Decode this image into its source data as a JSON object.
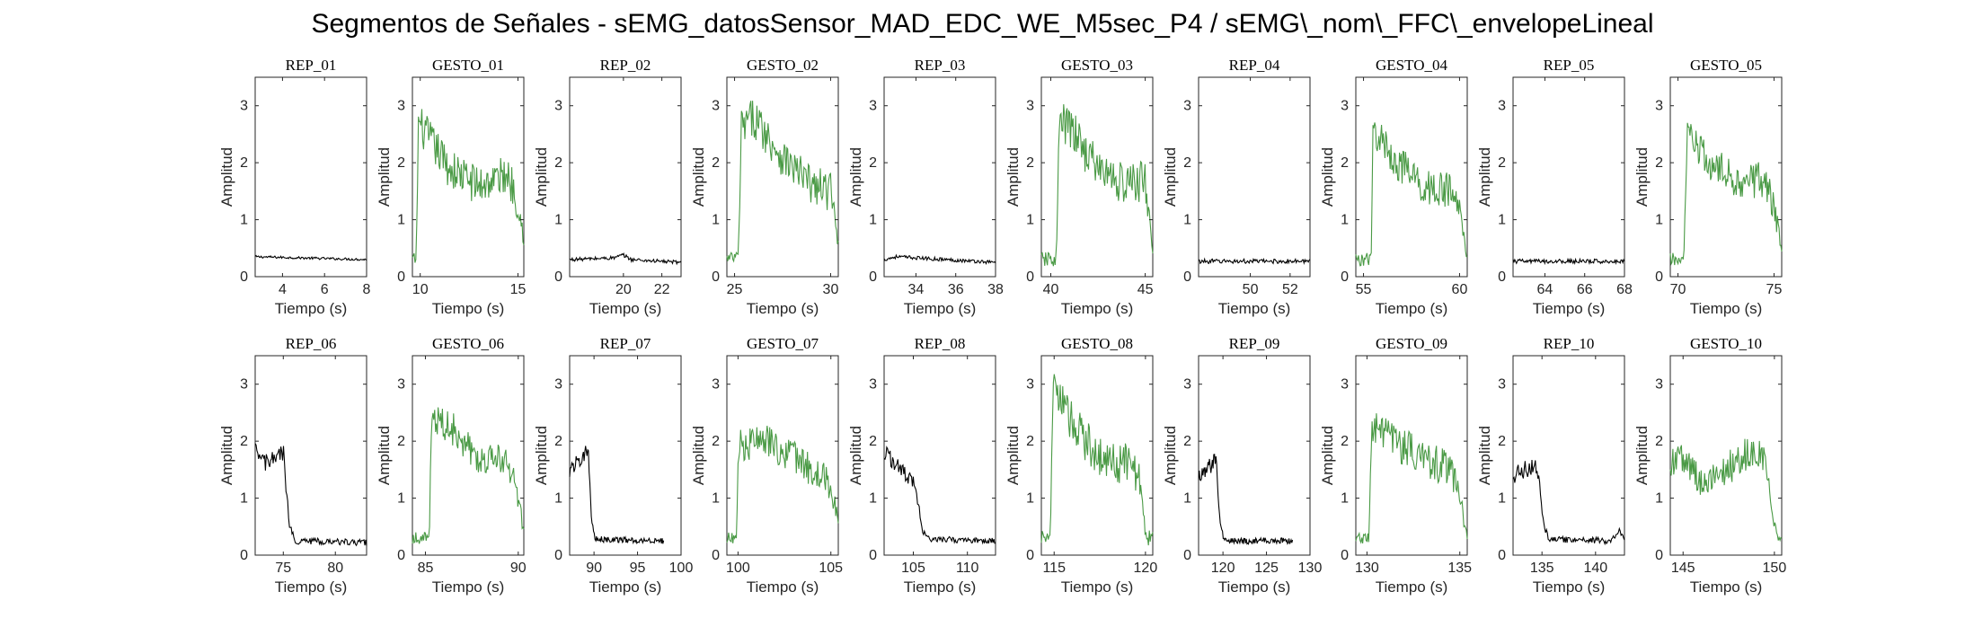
{
  "figure": {
    "title": "Segmentos de Señales - sEMG_datosSensor_MAD_EDC_WE_M5sec_P4 / sEMG\\_nom\\_FFC\\_envelopeLineal"
  },
  "chart_data": [
    {
      "type": "line",
      "title": "REP_01",
      "xlabel": "Tiempo (s)",
      "ylabel": "Amplitud",
      "xlim": [
        2.7,
        8
      ],
      "ylim": [
        0,
        3.5
      ],
      "xticks": [
        4,
        6,
        8
      ],
      "yticks": [
        0,
        1,
        2,
        3
      ],
      "color": "#000000",
      "profile": [
        [
          2.7,
          0.35
        ],
        [
          8,
          0.3
        ]
      ],
      "noise": 0.06
    },
    {
      "type": "line",
      "title": "GESTO_01",
      "xlabel": "Tiempo (s)",
      "ylabel": "Amplitud",
      "xlim": [
        9.6,
        15.3
      ],
      "ylim": [
        0,
        3.5
      ],
      "xticks": [
        10,
        15
      ],
      "yticks": [
        0,
        1,
        2,
        3
      ],
      "color": "#4a9a45",
      "profile": [
        [
          9.6,
          0.3
        ],
        [
          9.8,
          0.3
        ],
        [
          9.9,
          2.7
        ],
        [
          10.5,
          2.4
        ],
        [
          11.5,
          1.9
        ],
        [
          13,
          1.6
        ],
        [
          14.5,
          1.8
        ],
        [
          15,
          1.3
        ],
        [
          15.3,
          0.7
        ]
      ],
      "noise": 0.35
    },
    {
      "type": "line",
      "title": "REP_02",
      "xlabel": "Tiempo (s)",
      "ylabel": "Amplitud",
      "xlim": [
        17.2,
        23
      ],
      "ylim": [
        0,
        3.5
      ],
      "xticks": [
        20,
        22
      ],
      "yticks": [
        0,
        1,
        2,
        3
      ],
      "color": "#000000",
      "profile": [
        [
          17.2,
          0.3
        ],
        [
          19.5,
          0.33
        ],
        [
          20,
          0.38
        ],
        [
          20.4,
          0.3
        ],
        [
          23,
          0.25
        ]
      ],
      "noise": 0.09
    },
    {
      "type": "line",
      "title": "GESTO_02",
      "xlabel": "Tiempo (s)",
      "ylabel": "Amplitud",
      "xlim": [
        24.6,
        30.4
      ],
      "ylim": [
        0,
        3.5
      ],
      "xticks": [
        25,
        30
      ],
      "yticks": [
        0,
        1,
        2,
        3
      ],
      "color": "#4a9a45",
      "profile": [
        [
          24.6,
          0.3
        ],
        [
          25.2,
          0.35
        ],
        [
          25.35,
          2.6
        ],
        [
          26,
          2.8
        ],
        [
          27.5,
          2.1
        ],
        [
          29,
          1.6
        ],
        [
          30,
          1.5
        ],
        [
          30.4,
          0.6
        ]
      ],
      "noise": 0.35
    },
    {
      "type": "line",
      "title": "REP_03",
      "xlabel": "Tiempo (s)",
      "ylabel": "Amplitud",
      "xlim": [
        32.4,
        38
      ],
      "ylim": [
        0,
        3.5
      ],
      "xticks": [
        34,
        36,
        38
      ],
      "yticks": [
        0,
        1,
        2,
        3
      ],
      "color": "#000000",
      "profile": [
        [
          32.4,
          0.3
        ],
        [
          33,
          0.35
        ],
        [
          38,
          0.25
        ]
      ],
      "noise": 0.09
    },
    {
      "type": "line",
      "title": "GESTO_03",
      "xlabel": "Tiempo (s)",
      "ylabel": "Amplitud",
      "xlim": [
        39.5,
        45.4
      ],
      "ylim": [
        0,
        3.5
      ],
      "xticks": [
        40,
        45
      ],
      "yticks": [
        0,
        1,
        2,
        3
      ],
      "color": "#4a9a45",
      "profile": [
        [
          39.5,
          0.3
        ],
        [
          40.3,
          0.3
        ],
        [
          40.45,
          2.7
        ],
        [
          41,
          2.6
        ],
        [
          42.5,
          1.9
        ],
        [
          44,
          1.6
        ],
        [
          45,
          1.7
        ],
        [
          45.4,
          0.5
        ]
      ],
      "noise": 0.38
    },
    {
      "type": "line",
      "title": "REP_04",
      "xlabel": "Tiempo (s)",
      "ylabel": "Amplitud",
      "xlim": [
        47.4,
        53
      ],
      "ylim": [
        0,
        3.5
      ],
      "xticks": [
        50,
        52
      ],
      "yticks": [
        0,
        1,
        2,
        3
      ],
      "color": "#000000",
      "profile": [
        [
          47.4,
          0.27
        ],
        [
          53,
          0.27
        ]
      ],
      "noise": 0.11
    },
    {
      "type": "line",
      "title": "GESTO_04",
      "xlabel": "Tiempo (s)",
      "ylabel": "Amplitud",
      "xlim": [
        54.6,
        60.4
      ],
      "ylim": [
        0,
        3.5
      ],
      "xticks": [
        55,
        60
      ],
      "yticks": [
        0,
        1,
        2,
        3
      ],
      "color": "#4a9a45",
      "profile": [
        [
          54.6,
          0.3
        ],
        [
          55.4,
          0.3
        ],
        [
          55.5,
          2.6
        ],
        [
          56.5,
          2.1
        ],
        [
          58,
          1.6
        ],
        [
          59.5,
          1.5
        ],
        [
          60,
          1.2
        ],
        [
          60.4,
          0.3
        ]
      ],
      "noise": 0.33
    },
    {
      "type": "line",
      "title": "REP_05",
      "xlabel": "Tiempo (s)",
      "ylabel": "Amplitud",
      "xlim": [
        62.4,
        68
      ],
      "ylim": [
        0,
        3.5
      ],
      "xticks": [
        64,
        66,
        68
      ],
      "yticks": [
        0,
        1,
        2,
        3
      ],
      "color": "#000000",
      "profile": [
        [
          62.4,
          0.27
        ],
        [
          68,
          0.27
        ]
      ],
      "noise": 0.11
    },
    {
      "type": "line",
      "title": "GESTO_05",
      "xlabel": "Tiempo (s)",
      "ylabel": "Amplitud",
      "xlim": [
        69.6,
        75.4
      ],
      "ylim": [
        0,
        3.5
      ],
      "xticks": [
        70,
        75
      ],
      "yticks": [
        0,
        1,
        2,
        3
      ],
      "color": "#4a9a45",
      "profile": [
        [
          69.6,
          0.3
        ],
        [
          70.3,
          0.3
        ],
        [
          70.5,
          2.5
        ],
        [
          71.5,
          2.0
        ],
        [
          73,
          1.7
        ],
        [
          74.5,
          1.7
        ],
        [
          75,
          1.2
        ],
        [
          75.4,
          0.5
        ]
      ],
      "noise": 0.33
    },
    {
      "type": "line",
      "title": "REP_06",
      "xlabel": "Tiempo (s)",
      "ylabel": "Amplitud",
      "xlim": [
        72.3,
        83
      ],
      "ylim": [
        0,
        3.5
      ],
      "xticks": [
        75,
        80
      ],
      "yticks": [
        0,
        1,
        2,
        3
      ],
      "color": "#000000",
      "profile": [
        [
          72.3,
          1.8
        ],
        [
          73.5,
          1.6
        ],
        [
          75,
          1.8
        ],
        [
          75.6,
          0.5
        ],
        [
          76.2,
          0.25
        ],
        [
          83,
          0.22
        ]
      ],
      "noise": 0.16
    },
    {
      "type": "line",
      "title": "GESTO_06",
      "xlabel": "Tiempo (s)",
      "ylabel": "Amplitud",
      "xlim": [
        84.3,
        90.3
      ],
      "ylim": [
        0,
        3.5
      ],
      "xticks": [
        85,
        90
      ],
      "yticks": [
        0,
        1,
        2,
        3
      ],
      "color": "#4a9a45",
      "profile": [
        [
          84.3,
          0.3
        ],
        [
          85.2,
          0.3
        ],
        [
          85.35,
          2.4
        ],
        [
          86.5,
          2.2
        ],
        [
          88,
          1.7
        ],
        [
          89.5,
          1.6
        ],
        [
          90,
          1.0
        ],
        [
          90.3,
          0.4
        ]
      ],
      "noise": 0.3
    },
    {
      "type": "line",
      "title": "REP_07",
      "xlabel": "Tiempo (s)",
      "ylabel": "Amplitud",
      "xlim": [
        87.2,
        100
      ],
      "ylim": [
        0,
        3.5
      ],
      "xticks": [
        90,
        95,
        100
      ],
      "yticks": [
        0,
        1,
        2,
        3
      ],
      "color": "#000000",
      "profile": [
        [
          87.2,
          1.5
        ],
        [
          88.5,
          1.7
        ],
        [
          89.3,
          1.9
        ],
        [
          89.7,
          0.6
        ],
        [
          90.1,
          0.28
        ],
        [
          98,
          0.25
        ]
      ],
      "noise": 0.15
    },
    {
      "type": "line",
      "title": "GESTO_07",
      "xlabel": "Tiempo (s)",
      "ylabel": "Amplitud",
      "xlim": [
        99.4,
        105.4
      ],
      "ylim": [
        0,
        3.5
      ],
      "xticks": [
        100,
        105
      ],
      "yticks": [
        0,
        1,
        2,
        3
      ],
      "color": "#4a9a45",
      "profile": [
        [
          99.4,
          0.3
        ],
        [
          99.9,
          0.3
        ],
        [
          100.05,
          1.9
        ],
        [
          101.5,
          2.0
        ],
        [
          103,
          1.7
        ],
        [
          104.5,
          1.4
        ],
        [
          105,
          1.2
        ],
        [
          105.4,
          0.6
        ]
      ],
      "noise": 0.3
    },
    {
      "type": "line",
      "title": "REP_08",
      "xlabel": "Tiempo (s)",
      "ylabel": "Amplitud",
      "xlim": [
        102.3,
        112.6
      ],
      "ylim": [
        0,
        3.5
      ],
      "xticks": [
        105,
        110
      ],
      "yticks": [
        0,
        1,
        2,
        3
      ],
      "color": "#000000",
      "profile": [
        [
          102.3,
          1.8
        ],
        [
          104,
          1.5
        ],
        [
          105.2,
          1.2
        ],
        [
          105.9,
          0.4
        ],
        [
          106.5,
          0.28
        ],
        [
          112.6,
          0.25
        ]
      ],
      "noise": 0.15
    },
    {
      "type": "line",
      "title": "GESTO_08",
      "xlabel": "Tiempo (s)",
      "ylabel": "Amplitud",
      "xlim": [
        114.3,
        120.4
      ],
      "ylim": [
        0,
        3.5
      ],
      "xticks": [
        115,
        120
      ],
      "yticks": [
        0,
        1,
        2,
        3
      ],
      "color": "#4a9a45",
      "profile": [
        [
          114.3,
          0.3
        ],
        [
          114.8,
          0.3
        ],
        [
          114.95,
          3.0
        ],
        [
          116,
          2.3
        ],
        [
          117.5,
          1.7
        ],
        [
          119,
          1.6
        ],
        [
          119.7,
          1.4
        ],
        [
          120,
          0.3
        ],
        [
          120.4,
          0.3
        ]
      ],
      "noise": 0.38
    },
    {
      "type": "line",
      "title": "REP_09",
      "xlabel": "Tiempo (s)",
      "ylabel": "Amplitud",
      "xlim": [
        117.2,
        130
      ],
      "ylim": [
        0,
        3.5
      ],
      "xticks": [
        120,
        125,
        130
      ],
      "yticks": [
        0,
        1,
        2,
        3
      ],
      "color": "#000000",
      "profile": [
        [
          117.2,
          1.4
        ],
        [
          118.3,
          1.5
        ],
        [
          119.2,
          1.7
        ],
        [
          119.7,
          0.5
        ],
        [
          120.2,
          0.25
        ],
        [
          128,
          0.25
        ]
      ],
      "noise": 0.16
    },
    {
      "type": "line",
      "title": "GESTO_09",
      "xlabel": "Tiempo (s)",
      "ylabel": "Amplitud",
      "xlim": [
        129.4,
        135.4
      ],
      "ylim": [
        0,
        3.5
      ],
      "xticks": [
        130,
        135
      ],
      "yticks": [
        0,
        1,
        2,
        3
      ],
      "color": "#4a9a45",
      "profile": [
        [
          129.4,
          0.3
        ],
        [
          130.1,
          0.3
        ],
        [
          130.25,
          2.2
        ],
        [
          131.5,
          2.0
        ],
        [
          133,
          1.7
        ],
        [
          134.5,
          1.5
        ],
        [
          135,
          1.0
        ],
        [
          135.4,
          0.3
        ]
      ],
      "noise": 0.33
    },
    {
      "type": "line",
      "title": "REP_10",
      "xlabel": "Tiempo (s)",
      "ylabel": "Amplitud",
      "xlim": [
        132.3,
        142.7
      ],
      "ylim": [
        0,
        3.5
      ],
      "xticks": [
        135,
        140
      ],
      "yticks": [
        0,
        1,
        2,
        3
      ],
      "color": "#000000",
      "profile": [
        [
          132.3,
          1.4
        ],
        [
          133.5,
          1.5
        ],
        [
          134.5,
          1.6
        ],
        [
          135.2,
          0.5
        ],
        [
          135.7,
          0.28
        ],
        [
          141.5,
          0.25
        ],
        [
          142.2,
          0.45
        ],
        [
          142.7,
          0.3
        ]
      ],
      "noise": 0.16
    },
    {
      "type": "line",
      "title": "GESTO_10",
      "xlabel": "Tiempo (s)",
      "ylabel": "Amplitud",
      "xlim": [
        144.3,
        150.4
      ],
      "ylim": [
        0,
        3.5
      ],
      "xticks": [
        145,
        150
      ],
      "yticks": [
        0,
        1,
        2,
        3
      ],
      "color": "#4a9a45",
      "profile": [
        [
          144.3,
          1.6
        ],
        [
          145,
          1.7
        ],
        [
          146,
          1.3
        ],
        [
          147,
          1.4
        ],
        [
          148.5,
          1.8
        ],
        [
          149.5,
          1.7
        ],
        [
          150,
          0.5
        ],
        [
          150.4,
          0.2
        ]
      ],
      "noise": 0.3
    }
  ]
}
